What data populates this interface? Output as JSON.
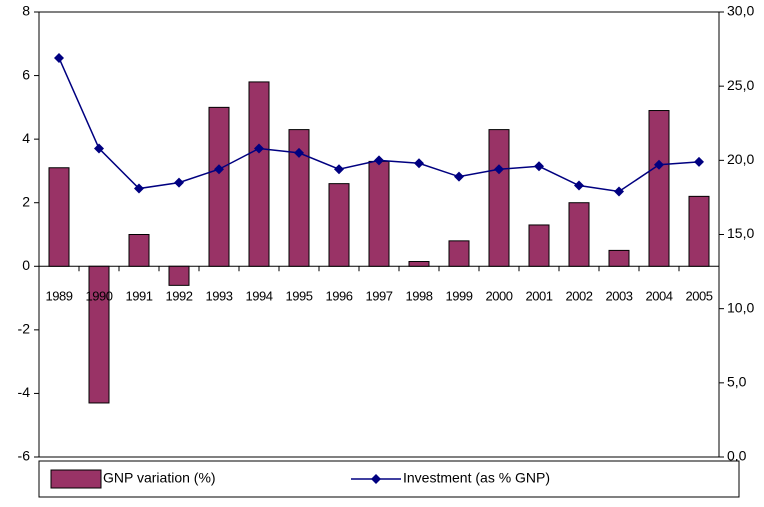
{
  "chart_data": {
    "type": "bar",
    "categories": [
      "1989",
      "1990",
      "1991",
      "1992",
      "1993",
      "1994",
      "1995",
      "1996",
      "1997",
      "1998",
      "1999",
      "2000",
      "2001",
      "2002",
      "2003",
      "2004",
      "2005"
    ],
    "series": [
      {
        "name": "GNP variation (%)",
        "type": "bar",
        "color": "#993366",
        "values": [
          3.1,
          -4.3,
          1.0,
          -0.6,
          5.0,
          5.8,
          4.3,
          2.6,
          3.3,
          0.15,
          0.8,
          4.3,
          1.3,
          2.0,
          0.5,
          4.9,
          2.2
        ]
      },
      {
        "name": "Investment (as % GNP)",
        "type": "line",
        "axis": "y2",
        "color": "#000080",
        "values": [
          26.9,
          20.8,
          18.1,
          18.5,
          19.4,
          20.8,
          20.5,
          19.4,
          20.0,
          19.8,
          18.9,
          19.4,
          19.6,
          18.3,
          17.9,
          19.7,
          19.9
        ]
      }
    ],
    "ylim": [
      -6,
      8
    ],
    "yticks": [
      -6,
      -4,
      -2,
      0,
      2,
      4,
      6,
      8
    ],
    "y2lim": [
      0,
      30
    ],
    "y2ticks": [
      {
        "value": 0,
        "label": "0,0"
      },
      {
        "value": 5,
        "label": "5,0"
      },
      {
        "value": 10,
        "label": "10,0"
      },
      {
        "value": 15,
        "label": "15,0"
      },
      {
        "value": 20,
        "label": "20,0"
      },
      {
        "value": 25,
        "label": "25,0"
      },
      {
        "value": 30,
        "label": "30,0"
      }
    ],
    "legend": "bottom"
  }
}
